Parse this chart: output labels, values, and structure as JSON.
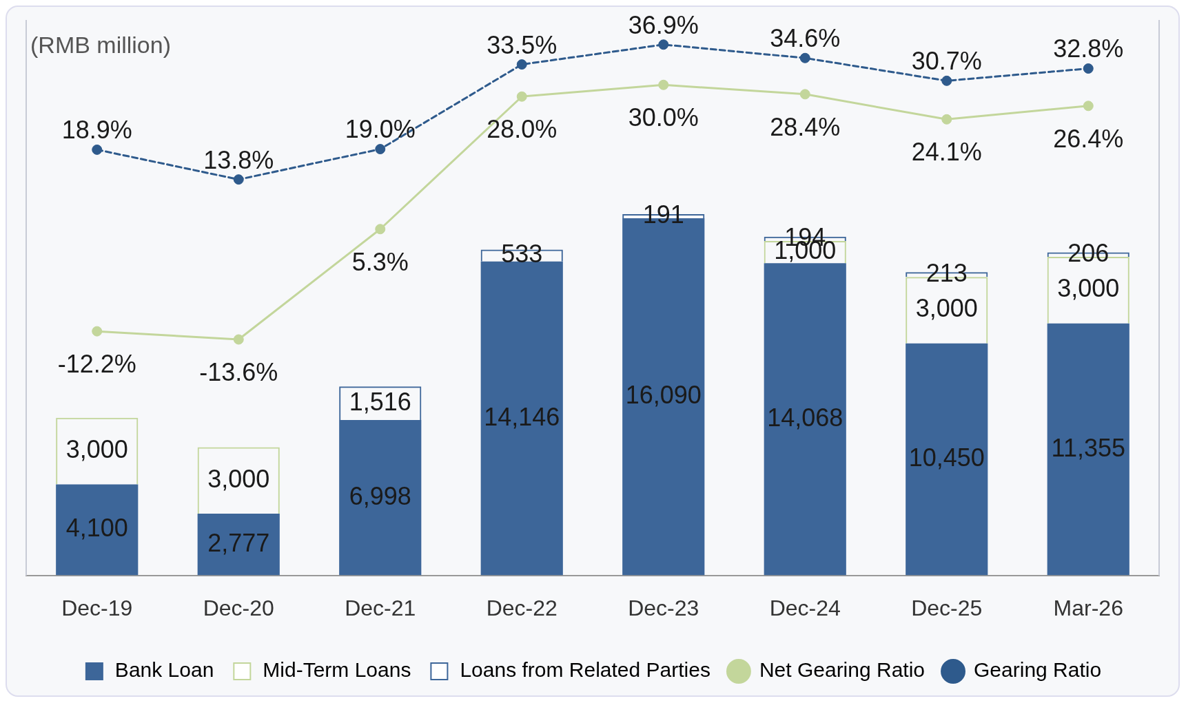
{
  "chart_data": {
    "type": "bar",
    "stacked": true,
    "annotations": [
      "(RMB million)"
    ],
    "ylim": [
      0,
      25000
    ],
    "y2lim": [
      -54,
      41
    ],
    "legend": "bottom",
    "categories": [
      "Dec-19",
      "Dec-20",
      "Dec-21",
      "Dec-22",
      "Dec-23",
      "Dec-24",
      "Dec-25",
      "Mar-26"
    ],
    "series": [
      {
        "name": "Bank Loan",
        "color": "#3d6699",
        "values": [
          4100,
          2777,
          6998,
          14146,
          16090,
          14068,
          10450,
          11355
        ],
        "value_labels": [
          "4,100",
          "2,777",
          "6,998",
          "14,146",
          "16,090",
          "14,068",
          "10,450",
          "11,355"
        ]
      },
      {
        "name": "Mid-Term Loans",
        "color": "#c3d69b",
        "values": [
          3000,
          3000,
          null,
          null,
          null,
          1000,
          3000,
          3000
        ],
        "value_labels": [
          "3,000",
          "3,000",
          null,
          null,
          null,
          "1,000",
          "3,000",
          "3,000"
        ]
      },
      {
        "name": "Loans from Related Parties",
        "color": "#3d6699",
        "values": [
          null,
          null,
          1516,
          533,
          191,
          194,
          213,
          206
        ],
        "value_labels": [
          null,
          null,
          "1,516",
          "533",
          "191",
          "194",
          "213",
          "206"
        ]
      },
      {
        "name": "Net Gearing Ratio",
        "type": "line",
        "axis": "y2",
        "color": "#c3d69b",
        "marker": "circle",
        "line_style": "solid",
        "values": [
          -12.2,
          -13.6,
          5.3,
          28.0,
          30.0,
          28.4,
          24.1,
          26.4
        ],
        "value_labels": [
          "-12.2%",
          "-13.6%",
          "5.3%",
          "28.0%",
          "30.0%",
          "28.4%",
          "24.1%",
          "26.4%"
        ]
      },
      {
        "name": "Gearing Ratio",
        "type": "line",
        "axis": "y2",
        "color": "#2e5a8c",
        "marker": "circle",
        "line_style": "dashed",
        "values": [
          18.9,
          13.8,
          19.0,
          33.5,
          36.9,
          34.6,
          30.7,
          32.8
        ],
        "value_labels": [
          "18.9%",
          "13.8%",
          "19.0%",
          "33.5%",
          "36.9%",
          "34.6%",
          "30.7%",
          "32.8%"
        ]
      }
    ]
  }
}
